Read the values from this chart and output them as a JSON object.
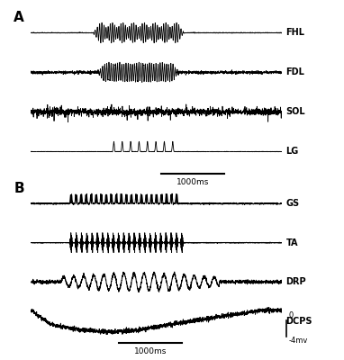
{
  "background_color": "#ffffff",
  "panel_A_label": "A",
  "panel_B_label": "B",
  "traces_A": [
    "FHL",
    "FDL",
    "SOL",
    "LG"
  ],
  "traces_B": [
    "GS",
    "TA",
    "DRP",
    "DCPS"
  ],
  "scalebar_A": "1000ms",
  "scalebar_B": "1000ms",
  "dcps_label_0": "0",
  "dcps_label_neg4": "-4mv",
  "figsize": [
    3.82,
    4.0
  ],
  "dpi": 100,
  "lw_A": 0.6,
  "lw_B": 0.7
}
